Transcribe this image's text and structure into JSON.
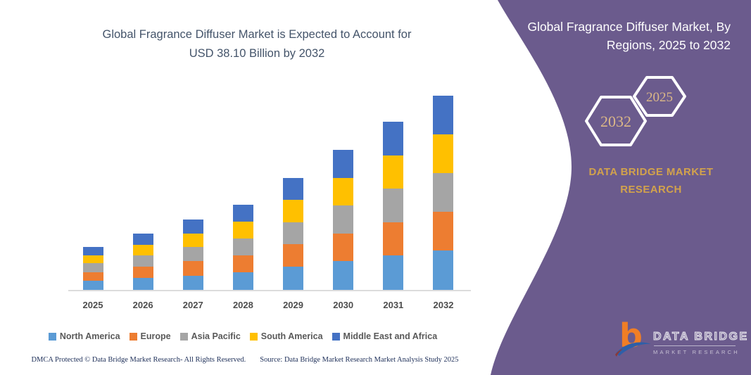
{
  "left": {
    "title_line1": "Global Fragrance Diffuser Market is Expected to Account for",
    "title_line2": "USD 38.10 Billion by 2032",
    "footer_left": "DMCA Protected © Data Bridge Market Research-  All Rights Reserved.",
    "footer_right": "Source: Data Bridge Market Research  Market Analysis Study 2025"
  },
  "chart_data": {
    "type": "bar",
    "stacked": true,
    "title": "Global Fragrance Diffuser Market is Expected to Account for USD 38.10 Billion by 2032",
    "unit": "USD Billion",
    "categories": [
      "2025",
      "2026",
      "2027",
      "2028",
      "2029",
      "2030",
      "2031",
      "2032"
    ],
    "series": [
      {
        "name": "North America",
        "color": "#5B9BD5",
        "values": [
          1.8,
          2.3,
          2.8,
          3.4,
          4.5,
          5.6,
          6.7,
          7.7
        ]
      },
      {
        "name": "Europe",
        "color": "#ED7D31",
        "values": [
          1.7,
          2.2,
          2.8,
          3.4,
          4.4,
          5.5,
          6.6,
          7.6
        ]
      },
      {
        "name": "Asia Pacific",
        "color": "#A5A5A5",
        "values": [
          1.7,
          2.2,
          2.8,
          3.3,
          4.4,
          5.5,
          6.6,
          7.6
        ]
      },
      {
        "name": "South America",
        "color": "#FFC000",
        "values": [
          1.6,
          2.2,
          2.7,
          3.3,
          4.4,
          5.4,
          6.5,
          7.6
        ]
      },
      {
        "name": "Middle East and Africa",
        "color": "#4472C4",
        "values": [
          1.6,
          2.1,
          2.7,
          3.3,
          4.3,
          5.5,
          6.6,
          7.6
        ]
      }
    ],
    "totals": [
      8.4,
      11.0,
      13.8,
      16.7,
      22.0,
      27.5,
      33.0,
      38.1
    ],
    "ylim": [
      0,
      40
    ],
    "grid": false,
    "legend_position": "bottom",
    "xlabel": "",
    "ylabel": ""
  },
  "panel": {
    "heading_line1": "Global Fragrance Diffuser Market, By",
    "heading_line2": "Regions, 2025 to 2032",
    "hex_large_year": "2032",
    "hex_small_year": "2025",
    "brand_line1": "DATA BRIDGE MARKET",
    "brand_line2": "RESEARCH",
    "colors": {
      "panel": "#6B5B8D",
      "gold": "#D2A24C",
      "hex_year_gold": "#DCB887",
      "hex_stroke": "#FFFFFF"
    }
  },
  "logo": {
    "b": "b",
    "name_top": "DATA BRIDGE",
    "name_bottom": "MARKET RESEARCH",
    "b_color": "#F07E26",
    "swoosh_color": "#2E5FA8"
  }
}
